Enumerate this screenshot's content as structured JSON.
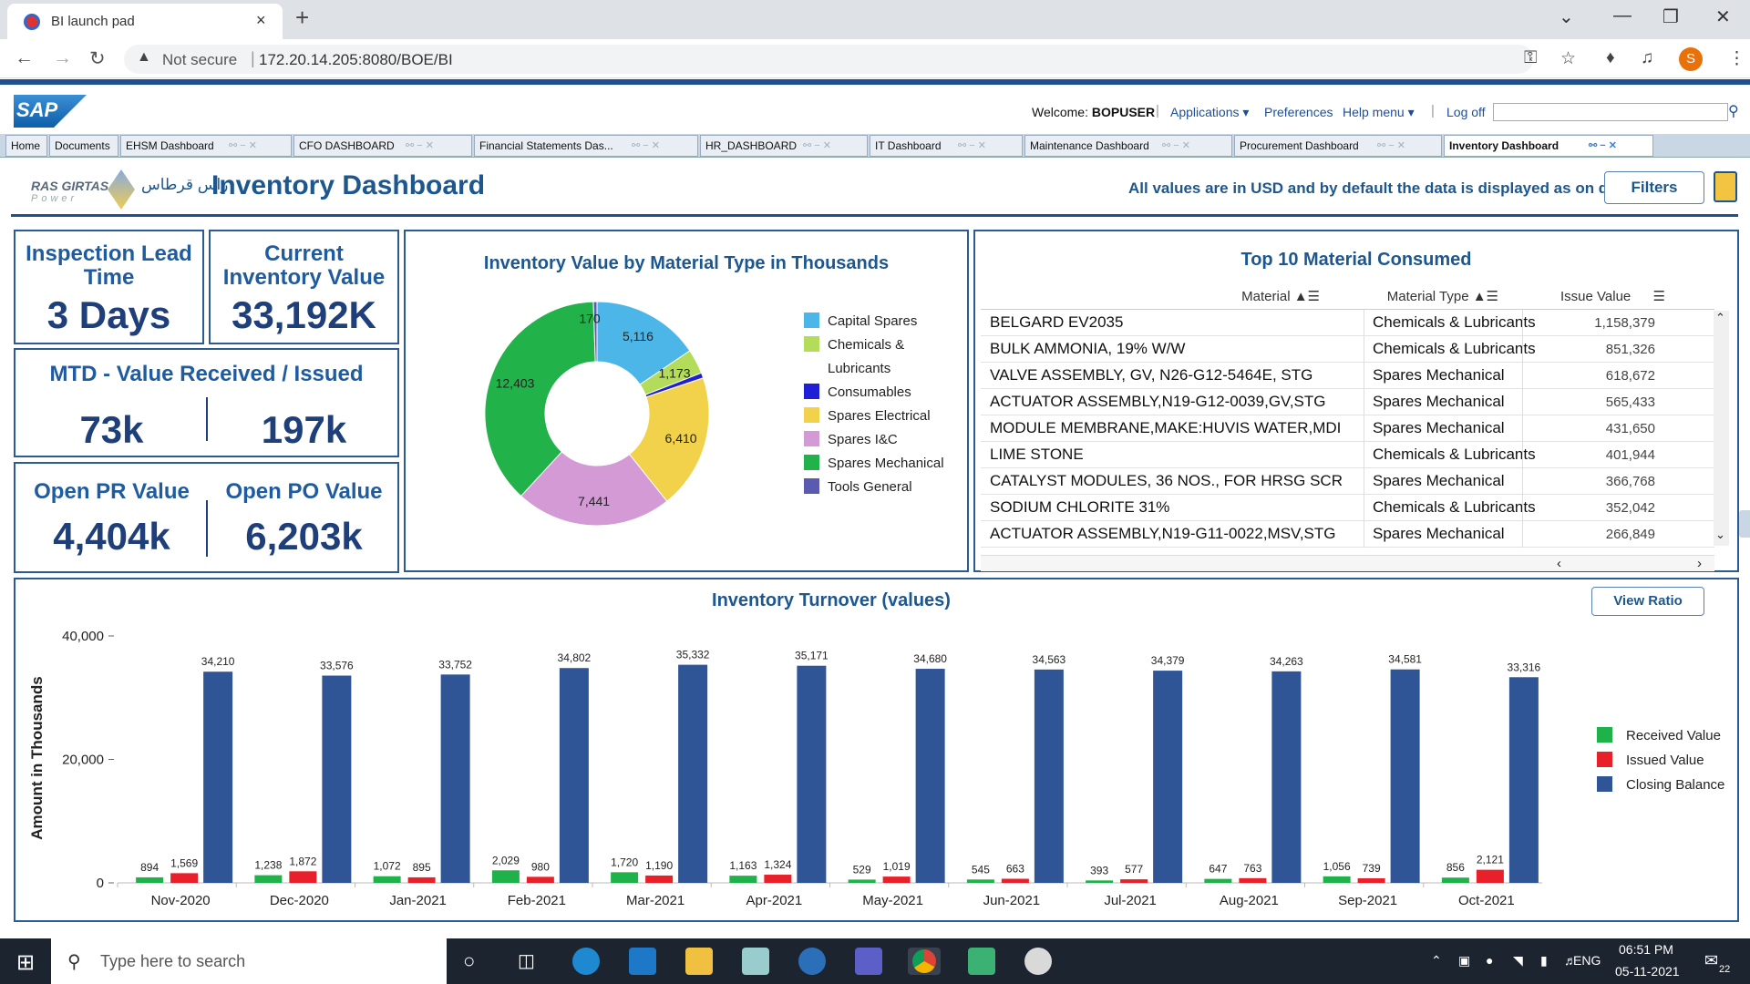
{
  "browser": {
    "tab_title": "BI launch pad",
    "close_glyph": "×",
    "new_tab_glyph": "+",
    "security_label": "Not secure",
    "url": "172.20.14.205:8080/BOE/BI",
    "profile_initial": "S",
    "icons": [
      "back-icon",
      "forward-icon",
      "reload-icon",
      "key-icon",
      "star-icon",
      "extension-icon",
      "media-icon",
      "profile-icon",
      "menu-icon"
    ]
  },
  "sap_header": {
    "welcome_label": "Welcome:",
    "user": "BOPUSER",
    "applications": "Applications",
    "preferences": "Preferences",
    "help_menu": "Help menu",
    "log_off": "Log off"
  },
  "doc_tabs": [
    "Home",
    "Documents",
    "EHSM Dashboard",
    "CFO DASHBOARD",
    "Financial Statements Das...",
    "HR_DASHBOARD",
    "IT Dashboard",
    "Maintenance Dashboard",
    "Procurement Dashboard",
    "Inventory Dashboard"
  ],
  "dashboard": {
    "logo_text": "RAS GIRTAS",
    "logo_sub": "Power",
    "logo_arabic": "راس قرطاس",
    "title": "Inventory Dashboard",
    "note": "All values are in USD and by default the data is displayed as on date",
    "filters_button": "Filters"
  },
  "kpis": {
    "inspection_lead_time": {
      "title": "Inspection Lead Time",
      "value": "3 Days"
    },
    "current_inventory": {
      "title": "Current Inventory Value",
      "value": "33,192K"
    },
    "mtd": {
      "title": "MTD - Value Received / Issued",
      "received": "73k",
      "issued": "197k"
    },
    "open_pr": {
      "title": "Open PR Value",
      "value": "4,404k"
    },
    "open_po": {
      "title": "Open PO Value",
      "value": "6,203k"
    }
  },
  "top10": {
    "title": "Top 10 Material Consumed",
    "headers": [
      "Material",
      "Material Type",
      "Issue Value"
    ],
    "rows": [
      [
        "BELGARD EV2035",
        "Chemicals & Lubricants",
        "1,158,379"
      ],
      [
        "BULK AMMONIA, 19% W/W",
        "Chemicals & Lubricants",
        "851,326"
      ],
      [
        "VALVE ASSEMBLY, GV, N26-G12-5464E, STG",
        "Spares Mechanical",
        "618,672"
      ],
      [
        "ACTUATOR ASSEMBLY,N19-G12-0039,GV,STG",
        "Spares Mechanical",
        "565,433"
      ],
      [
        "MODULE MEMBRANE,MAKE:HUVIS WATER,MDI",
        "Spares Mechanical",
        "431,650"
      ],
      [
        "LIME STONE",
        "Chemicals & Lubricants",
        "401,944"
      ],
      [
        "CATALYST MODULES, 36 NOS., FOR HRSG SCR",
        "Spares Mechanical",
        "366,768"
      ],
      [
        "SODIUM CHLORITE 31%",
        "Chemicals & Lubricants",
        "352,042"
      ],
      [
        "ACTUATOR ASSEMBLY,N19-G11-0022,MSV,STG",
        "Spares Mechanical",
        "266,849"
      ]
    ]
  },
  "turnover": {
    "view_ratio_button": "View Ratio"
  },
  "chart_data": [
    {
      "type": "pie",
      "title": "Inventory Value by Material Type in Thousands",
      "donut": true,
      "categories": [
        "Capital Spares",
        "Chemicals & Lubricants",
        "Consumables",
        "Spares Electrical",
        "Spares I&C",
        "Spares Mechanical",
        "Tools General"
      ],
      "legend_lines": [
        [
          "Capital Spares"
        ],
        [
          "Chemicals &",
          "Lubricants"
        ],
        [
          "Consumables"
        ],
        [
          "Spares Electrical"
        ],
        [
          "Spares I&C"
        ],
        [
          "Spares Mechanical"
        ],
        [
          "Tools General"
        ]
      ],
      "values": [
        5116,
        1173,
        250,
        6410,
        7441,
        12403,
        170
      ],
      "labels": [
        "5,116",
        "1,173",
        "",
        "6,410",
        "7,441",
        "12,403",
        "170"
      ],
      "colors": [
        "#4db6e8",
        "#b3dc5a",
        "#1f1fd6",
        "#f2d24a",
        "#d49ad6",
        "#21b24a",
        "#5a5ab0"
      ],
      "legend_position": "right"
    },
    {
      "type": "bar",
      "title": "Inventory Turnover (values)",
      "ylabel": "Amount in Thousands",
      "ylim": [
        0,
        40000
      ],
      "yticks": [
        0,
        20000,
        40000
      ],
      "ytick_labels": [
        "0",
        "20,000",
        "40,000"
      ],
      "categories": [
        "Nov-2020",
        "Dec-2020",
        "Jan-2021",
        "Feb-2021",
        "Mar-2021",
        "Apr-2021",
        "May-2021",
        "Jun-2021",
        "Jul-2021",
        "Aug-2021",
        "Sep-2021",
        "Oct-2021"
      ],
      "series": [
        {
          "name": "Received Value",
          "color": "#20b24a",
          "values": [
            894,
            1238,
            1072,
            2029,
            1720,
            1163,
            529,
            545,
            393,
            647,
            1056,
            856
          ],
          "labels": [
            "894",
            "1,238",
            "1,072",
            "2,029",
            "1,720",
            "1,163",
            "529",
            "545",
            "393",
            "647",
            "1,056",
            "856"
          ]
        },
        {
          "name": "Issued Value",
          "color": "#e8202a",
          "values": [
            1569,
            1872,
            895,
            980,
            1190,
            1324,
            1019,
            663,
            577,
            763,
            739,
            2121
          ],
          "labels": [
            "1,569",
            "1,872",
            "895",
            "980",
            "1,190",
            "1,324",
            "1,019",
            "663",
            "577",
            "763",
            "739",
            "2,121"
          ]
        },
        {
          "name": "Closing Balance",
          "color": "#2f5597",
          "values": [
            34210,
            33576,
            33752,
            34802,
            35332,
            35171,
            34680,
            34563,
            34379,
            34263,
            34581,
            33316
          ],
          "labels": [
            "34,210",
            "33,576",
            "33,752",
            "34,802",
            "35,332",
            "35,171",
            "34,680",
            "34,563",
            "34,379",
            "34,263",
            "34,581",
            "33,316"
          ]
        }
      ],
      "grid": false,
      "legend_position": "right"
    }
  ],
  "taskbar": {
    "search_placeholder": "Type here to search",
    "language": "ENG",
    "time": "06:51 PM",
    "date": "05-11-2021",
    "notifications": "22"
  }
}
